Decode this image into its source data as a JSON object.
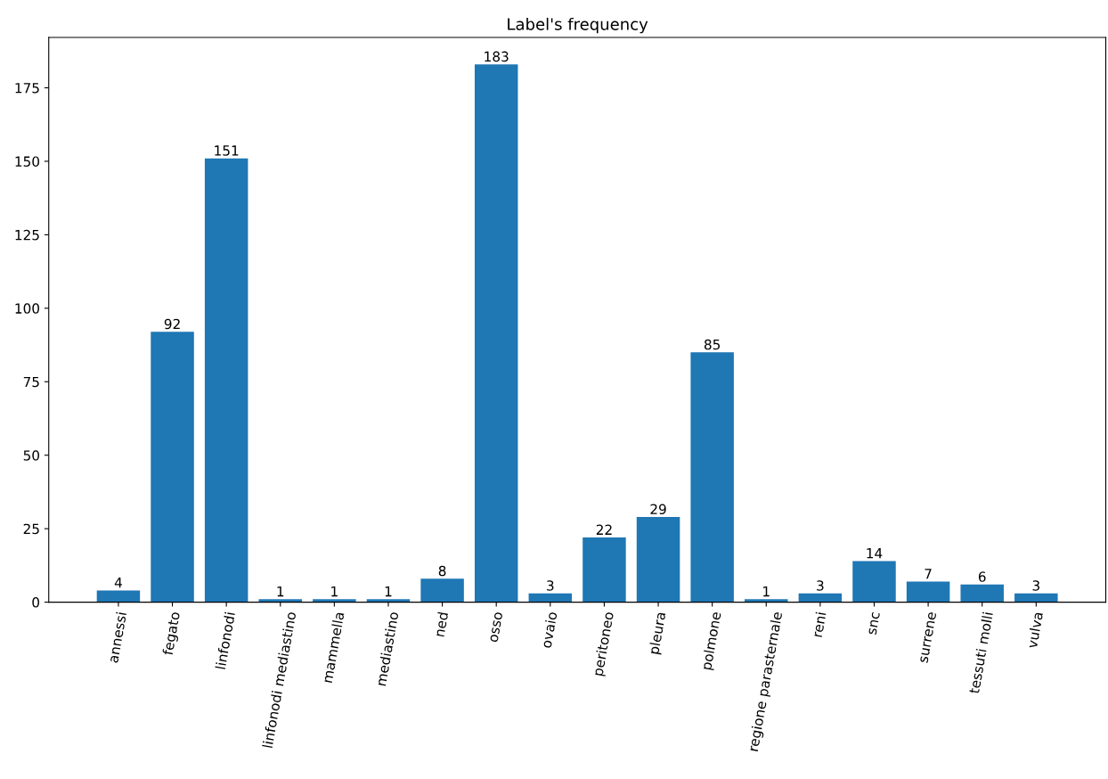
{
  "chart_data": {
    "type": "bar",
    "title": "Label's frequency",
    "categories": [
      "annessi",
      "fegato",
      "linfonodi",
      "linfonodi mediastino",
      "mammella",
      "mediastino",
      "ned",
      "osso",
      "ovaio",
      "peritoneo",
      "pleura",
      "polmone",
      "regione parasternale",
      "reni",
      "snc",
      "surrene",
      "tessuti molli",
      "vulva"
    ],
    "values": [
      4,
      92,
      151,
      1,
      1,
      1,
      8,
      183,
      3,
      22,
      29,
      85,
      1,
      3,
      14,
      7,
      6,
      3
    ],
    "color": "#1f77b4",
    "ylim": [
      0,
      192.15
    ],
    "yticks": [
      0,
      25,
      50,
      75,
      100,
      125,
      150,
      175
    ],
    "data_labels": true,
    "grid": false,
    "legend": false
  }
}
